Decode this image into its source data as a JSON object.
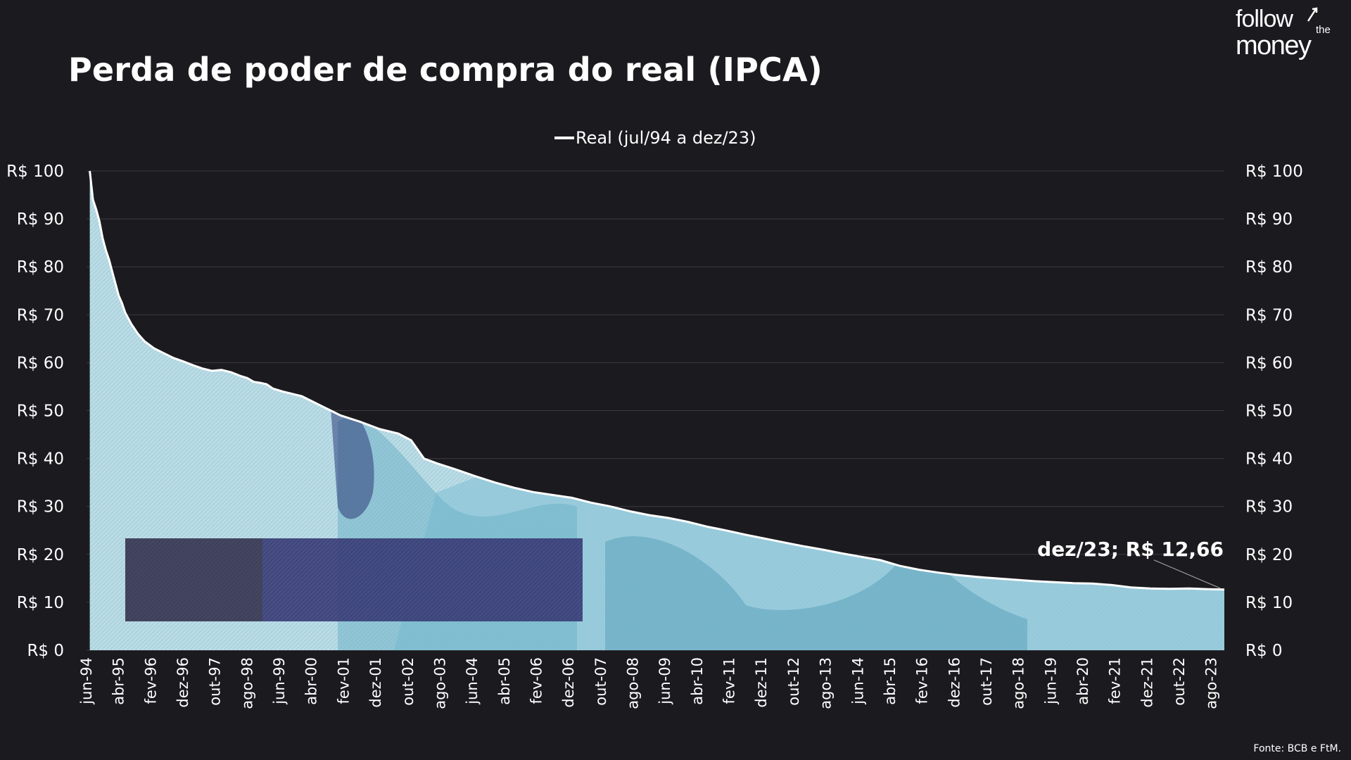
{
  "title": "Perda de poder de compra do real (IPCA)",
  "logo": {
    "line1": "follow",
    "small": "the",
    "line2": "money"
  },
  "source": "Fonte: BCB e FtM.",
  "colors": {
    "background": "#1b1b1f",
    "line": "#ffffff",
    "note_fill": "#b9dde6",
    "note_dark": "#3b3f7a",
    "grid": "#3a3a40"
  },
  "chart_data": {
    "type": "area",
    "legend": {
      "label": "Real (jul/94 a dez/23)",
      "position": "top-center"
    },
    "yticks": [
      "R$ 0",
      "R$ 10",
      "R$ 20",
      "R$ 30",
      "R$ 40",
      "R$ 50",
      "R$ 60",
      "R$ 70",
      "R$ 80",
      "R$ 90",
      "R$ 100"
    ],
    "ylim": [
      0,
      100
    ],
    "grid": true,
    "secondary_axis": true,
    "xticks": [
      "jun-94",
      "abr-95",
      "fev-96",
      "dez-96",
      "out-97",
      "ago-98",
      "jun-99",
      "abr-00",
      "fev-01",
      "dez-01",
      "out-02",
      "ago-03",
      "jun-04",
      "abr-05",
      "fev-06",
      "dez-06",
      "out-07",
      "ago-08",
      "jun-09",
      "abr-10",
      "fev-11",
      "dez-11",
      "out-12",
      "ago-13",
      "jun-14",
      "abr-15",
      "fev-16",
      "dez-16",
      "out-17",
      "ago-18",
      "jun-19",
      "abr-20",
      "fev-21",
      "dez-21",
      "out-22",
      "ago-23"
    ],
    "series": [
      {
        "name": "Real (jul/94 a dez/23)",
        "x": [
          "jul-94",
          "ago-94",
          "set-94",
          "out-94",
          "nov-94",
          "dez-94",
          "jan-95",
          "fev-95",
          "mar-95",
          "abr-95",
          "mai-95",
          "jun-95",
          "ago-95",
          "out-95",
          "dez-95",
          "mar-96",
          "jun-96",
          "set-96",
          "dez-96",
          "mar-97",
          "jun-97",
          "set-97",
          "dez-97",
          "mar-98",
          "jun-98",
          "ago-98",
          "out-98",
          "dez-98",
          "fev-99",
          "abr-99",
          "jul-99",
          "out-99",
          "jan-00",
          "abr-00",
          "jul-00",
          "out-00",
          "jan-01",
          "jul-01",
          "jan-02",
          "jul-02",
          "nov-02",
          "mar-03",
          "jul-03",
          "jan-04",
          "jul-04",
          "jan-05",
          "jul-05",
          "jan-06",
          "jul-06",
          "jan-07",
          "jul-07",
          "jan-08",
          "jul-08",
          "jan-09",
          "jul-09",
          "jan-10",
          "jul-10",
          "jan-11",
          "jul-11",
          "jan-12",
          "jul-12",
          "jan-13",
          "jul-13",
          "jan-14",
          "jul-14",
          "jan-15",
          "jul-15",
          "jan-16",
          "jul-16",
          "jan-17",
          "jul-17",
          "jan-18",
          "jul-18",
          "jan-19",
          "jul-19",
          "jan-20",
          "jul-20",
          "jan-21",
          "jul-21",
          "jan-22",
          "jul-22",
          "jan-23",
          "jul-23",
          "dez-23"
        ],
        "values": [
          100,
          94.0,
          92.0,
          89.5,
          86.0,
          83.5,
          81.5,
          79.0,
          76.5,
          74.0,
          72.5,
          70.5,
          68.0,
          66.0,
          64.5,
          63.0,
          62.0,
          61.0,
          60.3,
          59.5,
          58.8,
          58.3,
          58.5,
          58.0,
          57.2,
          56.8,
          56.0,
          55.8,
          55.5,
          54.6,
          54.0,
          53.5,
          53.0,
          52.0,
          51.0,
          50.0,
          49.0,
          47.7,
          46.2,
          45.2,
          43.8,
          40.0,
          39.0,
          37.7,
          36.3,
          35.0,
          33.9,
          33.0,
          32.4,
          31.8,
          30.8,
          30.0,
          29.0,
          28.2,
          27.6,
          26.8,
          25.8,
          25.0,
          24.1,
          23.3,
          22.5,
          21.7,
          21.0,
          20.2,
          19.5,
          18.8,
          17.6,
          16.8,
          16.2,
          15.7,
          15.3,
          15.0,
          14.7,
          14.4,
          14.2,
          14.0,
          13.9,
          13.6,
          13.1,
          12.9,
          12.8,
          12.9,
          12.75,
          12.66
        ]
      }
    ],
    "annotation": {
      "text": "dez/23; R$ 12,66",
      "x": "dez-23",
      "y": 12.66
    }
  }
}
